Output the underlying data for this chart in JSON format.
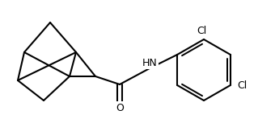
{
  "bg": "#ffffff",
  "line_color": "#000000",
  "line_width": 1.5,
  "font_size": 8,
  "atoms": {
    "O_label": "O",
    "NH_label": "HN",
    "Cl1_label": "Cl",
    "Cl2_label": "Cl"
  }
}
